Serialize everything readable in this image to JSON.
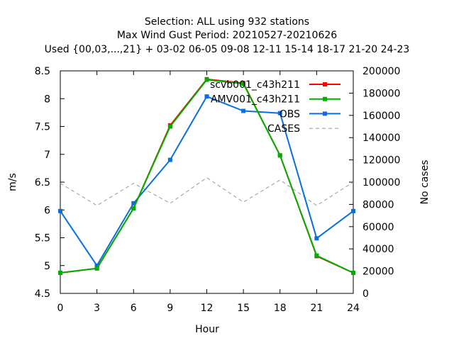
{
  "chart_data": {
    "type": "line",
    "title_lines": [
      "Selection: ALL using   932 stations",
      "Max Wind Gust   Period: 20210527-20210626",
      "Used {00,03,...,21} + 03-02 06-05 09-08 12-11 15-14 18-17 21-20 24-23"
    ],
    "xlabel": "Hour",
    "ylabel": "m/s",
    "y2label": "No cases",
    "x": [
      0,
      3,
      6,
      9,
      12,
      15,
      18,
      21,
      24
    ],
    "xlim": [
      0,
      24
    ],
    "ylim": [
      4.5,
      8.5
    ],
    "y2lim": [
      0,
      200000
    ],
    "x_ticks": [
      "0",
      "3",
      "6",
      "9",
      "12",
      "15",
      "18",
      "21",
      "24"
    ],
    "y_ticks": [
      "4.5",
      "5",
      "5.5",
      "6",
      "6.5",
      "7",
      "7.5",
      "8",
      "8.5"
    ],
    "y2_ticks": [
      "0",
      "20000",
      "40000",
      "60000",
      "80000",
      "100000",
      "120000",
      "140000",
      "160000",
      "180000",
      "200000"
    ],
    "legend_position": "top-right",
    "grid": false,
    "series": [
      {
        "name": "scvb001_c43h211",
        "axis": "y",
        "color": "#ff0000",
        "style": "solid",
        "marker": "square",
        "values": [
          4.87,
          4.95,
          6.03,
          7.52,
          8.35,
          8.28,
          6.98,
          5.17,
          4.87
        ]
      },
      {
        "name": "AMV001_c43h211",
        "axis": "y",
        "color": "#00b000",
        "style": "solid",
        "marker": "square",
        "values": [
          4.87,
          4.95,
          6.03,
          7.5,
          8.34,
          8.27,
          6.98,
          5.18,
          4.87
        ]
      },
      {
        "name": "OBS",
        "axis": "y",
        "color": "#0a6ee0",
        "style": "solid",
        "marker": "square",
        "values": [
          5.98,
          5.0,
          6.12,
          6.9,
          8.04,
          7.78,
          7.74,
          5.49,
          5.98
        ]
      },
      {
        "name": "CASES",
        "axis": "y2",
        "color": "#999999",
        "style": "dashed",
        "marker": "none",
        "values": [
          99000,
          79000,
          99000,
          81000,
          104000,
          82000,
          102000,
          79000,
          100000
        ]
      }
    ]
  }
}
